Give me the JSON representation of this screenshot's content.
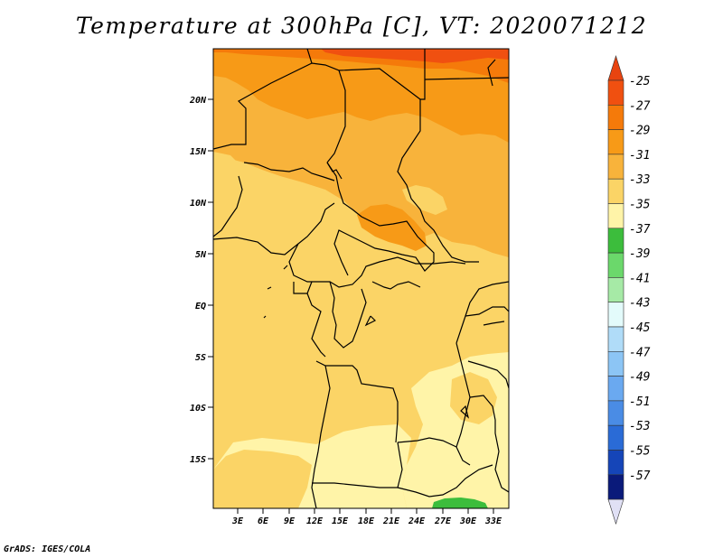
{
  "title": "Temperature at 300hPa [C], VT: 2020071212",
  "footer": "GrADS: IGES/COLA",
  "map": {
    "lat_ticks": [
      "20N",
      "15N",
      "10N",
      "5N",
      "EQ",
      "5S",
      "10S",
      "15S"
    ],
    "lon_ticks": [
      "3E",
      "6E",
      "9E",
      "12E",
      "15E",
      "18E",
      "21E",
      "24E",
      "27E",
      "30E",
      "33E"
    ]
  },
  "legend": {
    "labels": [
      "-25",
      "-27",
      "-29",
      "-31",
      "-33",
      "-35",
      "-37",
      "-39",
      "-41",
      "-43",
      "-45",
      "-47",
      "-49",
      "-51",
      "-53",
      "-55",
      "-57"
    ],
    "colors": [
      "#f05010",
      "#f57a0a",
      "#f79a17",
      "#f8b33b",
      "#fbd466",
      "#fff4a8",
      "#3cbd3c",
      "#6bd86b",
      "#a6eaa6",
      "#e3fbfb",
      "#b0dcf8",
      "#8cc5f5",
      "#6aa9f0",
      "#4a8ce5",
      "#2a6bd6",
      "#1545b8",
      "#0a1a7a"
    ],
    "top_arrow_color": "#e84410",
    "bottom_arrow_color": "#e0e0f5"
  }
}
